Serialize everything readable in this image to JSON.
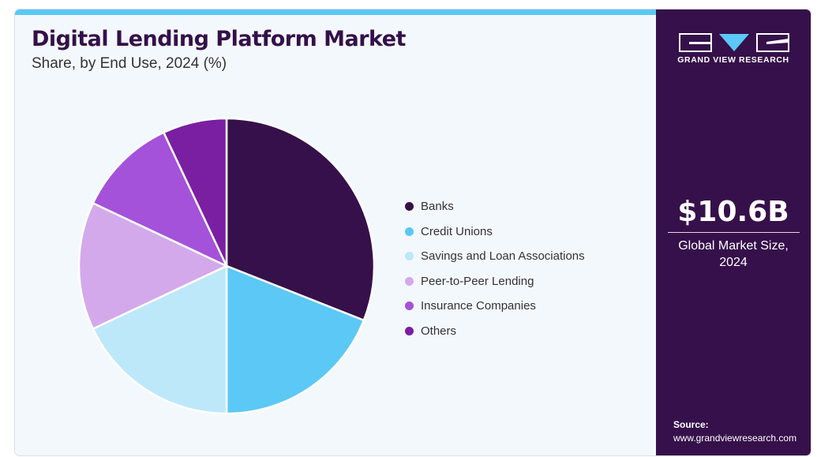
{
  "header": {
    "title": "Digital Lending Platform Market",
    "subtitle": "Share, by End Use, 2024 (%)"
  },
  "chart_data": {
    "type": "pie",
    "title": "Digital Lending Platform Market",
    "subtitle": "Share, by End Use, 2024 (%)",
    "categories": [
      "Banks",
      "Credit Unions",
      "Savings and Loan Associations",
      "Peer-to-Peer Lending",
      "Insurance Companies",
      "Others"
    ],
    "values": [
      31,
      19,
      18,
      14,
      11,
      7
    ],
    "colors": [
      "#36104a",
      "#5bc8f5",
      "#bde8f9",
      "#d3a9eb",
      "#a452d9",
      "#7a1fa2"
    ],
    "legend_position": "right"
  },
  "sidebar": {
    "brand": "GRAND VIEW RESEARCH",
    "market_size": "$10.6B",
    "market_label": "Global Market Size, 2024",
    "source_label": "Source:",
    "source_url": "www.grandviewresearch.com"
  }
}
